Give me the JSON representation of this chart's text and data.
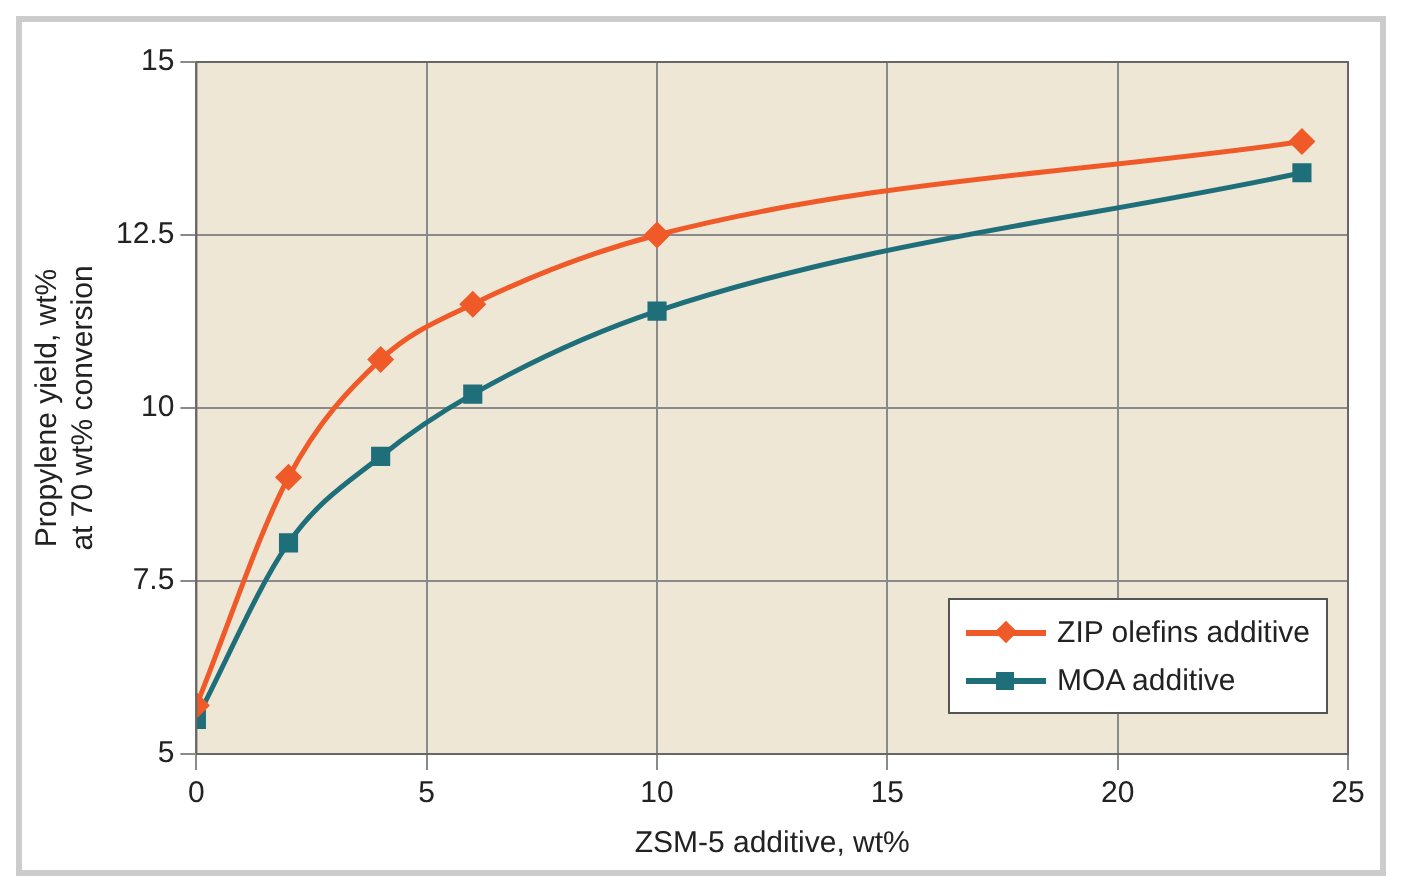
{
  "chart_data": {
    "type": "line",
    "xlabel": "ZSM-5 additive, wt%",
    "ylabel": "Propylene yield, wt%\nat 70 wt% conversion",
    "xlim": [
      0,
      25
    ],
    "xticks": [
      0,
      5,
      10,
      15,
      20,
      25
    ],
    "ylim": [
      5,
      15
    ],
    "yticks": [
      5,
      7.5,
      10,
      12.5,
      15
    ],
    "grid": true,
    "legend": "bottom right",
    "series": [
      {
        "name": "ZIP olefins additive",
        "color": "#f05a28",
        "marker": "diamond",
        "x": [
          0,
          2,
          4,
          6,
          10,
          24
        ],
        "values": [
          5.7,
          9,
          10.7,
          11.5,
          12.5,
          13.85
        ]
      },
      {
        "name": "MOA additive",
        "color": "#1f6f7a",
        "marker": "square",
        "x": [
          0,
          2,
          4,
          6,
          10,
          24
        ],
        "values": [
          5.5,
          8.05,
          9.3,
          10.2,
          11.4,
          13.4
        ]
      }
    ]
  }
}
